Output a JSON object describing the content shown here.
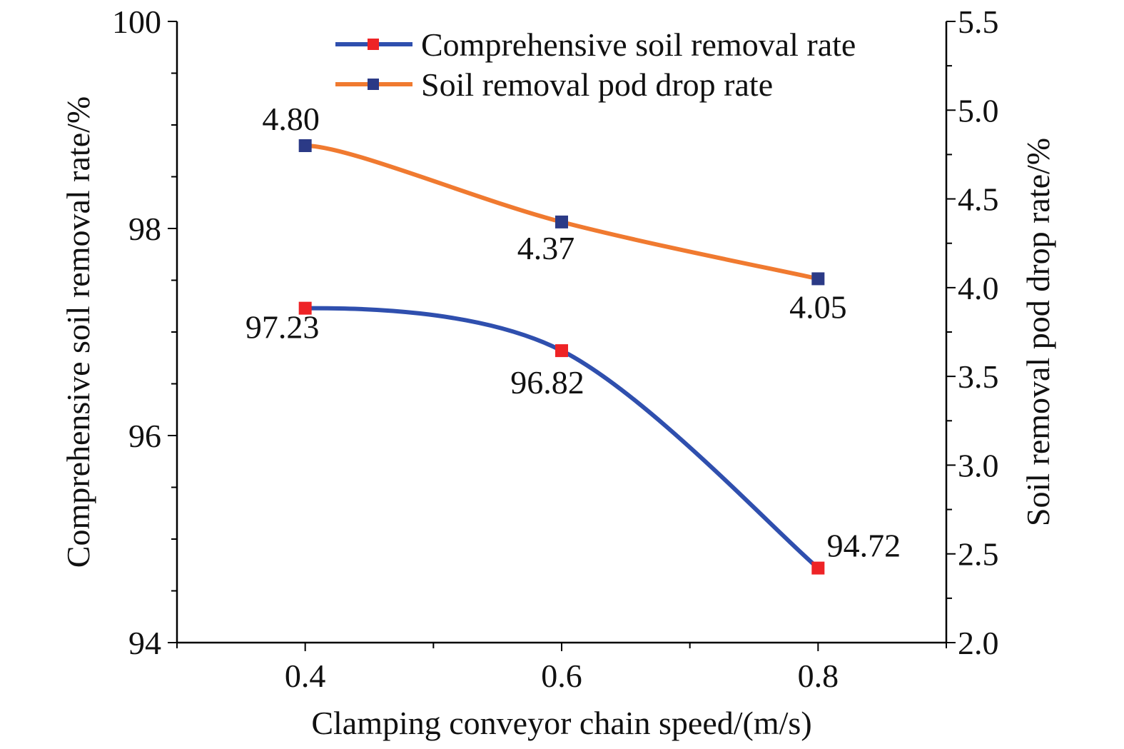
{
  "chart_data": {
    "type": "line",
    "x": [
      0.4,
      0.6,
      0.8
    ],
    "xlabel": "Clamping conveyor chain speed/(m/s)",
    "x_ticks": [
      "0.4",
      "0.6",
      "0.8"
    ],
    "xlim": [
      0.3,
      0.9
    ],
    "ylabel_left": "Comprehensive soil removal rate/%",
    "ylabel_right": "Soil removal pod drop rate/%",
    "ylim_left": [
      94,
      100
    ],
    "ylim_right": [
      2.0,
      5.5
    ],
    "y_ticks_left": [
      "94",
      "96",
      "98",
      "100"
    ],
    "y_ticks_right": [
      "2.0",
      "2.5",
      "3.0",
      "3.5",
      "4.0",
      "4.5",
      "5.0",
      "5.5"
    ],
    "legend_position": "top-right",
    "series": [
      {
        "name": "Comprehensive soil removal rate",
        "axis": "left",
        "values": [
          97.23,
          96.82,
          94.72
        ],
        "labels": [
          "97.23",
          "96.82",
          "94.72"
        ],
        "line_color": "#2f4fae",
        "marker_color": "#ee2326"
      },
      {
        "name": "Soil removal pod drop rate",
        "axis": "right",
        "values": [
          4.8,
          4.37,
          4.05
        ],
        "labels": [
          "4.80",
          "4.37",
          "4.05"
        ],
        "line_color": "#f07a30",
        "marker_color": "#2b3a86"
      }
    ]
  }
}
